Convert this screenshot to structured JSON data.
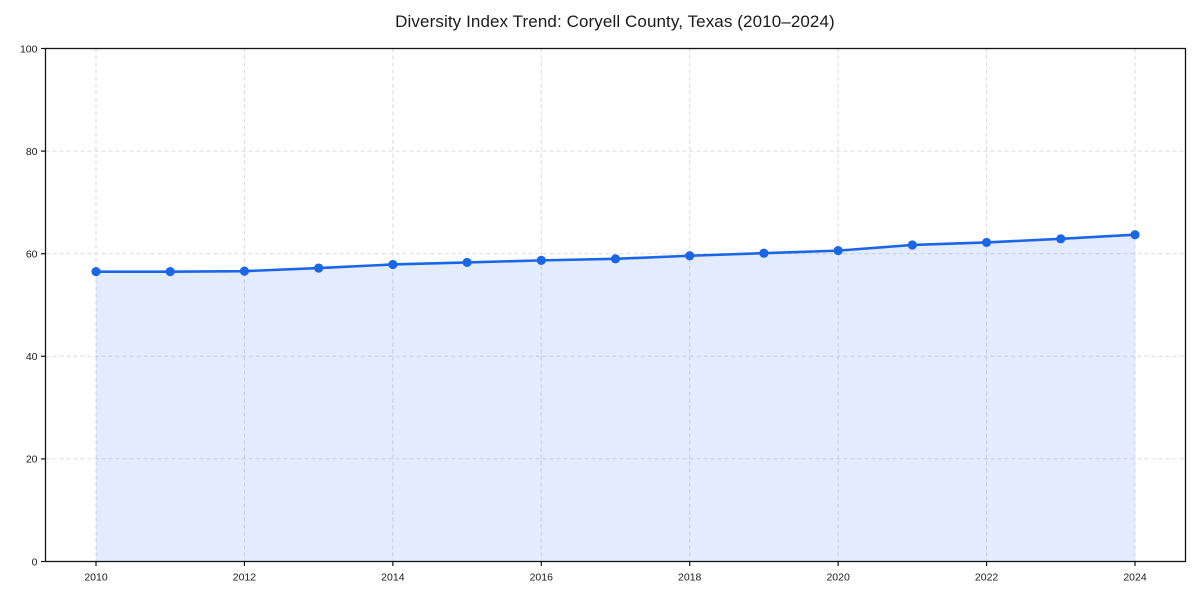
{
  "chart_data": {
    "type": "line",
    "title": "Diversity Index Trend: Coryell County, Texas (2010–2024)",
    "x": [
      2010,
      2011,
      2012,
      2013,
      2014,
      2015,
      2016,
      2017,
      2018,
      2019,
      2020,
      2021,
      2022,
      2023,
      2024
    ],
    "series": [
      {
        "name": "Diversity Index",
        "values": [
          56.5,
          56.5,
          56.6,
          57.2,
          57.9,
          58.3,
          58.7,
          59.0,
          59.6,
          60.1,
          60.6,
          61.7,
          62.2,
          62.9,
          63.7
        ]
      }
    ],
    "xlabel": "",
    "ylabel": "",
    "ylim": [
      0,
      100
    ],
    "yticks": [
      0,
      20,
      40,
      60,
      80,
      100
    ],
    "xticks": [
      2010,
      2012,
      2014,
      2016,
      2018,
      2020,
      2022,
      2024
    ],
    "grid": true,
    "grid_style": "dashed",
    "legend": "none",
    "area_fill": true,
    "colors": {
      "line": "#1b66e6",
      "marker": "#1b66e6",
      "fill": "rgba(27, 102, 230, 0.12)",
      "grid": "#dadada",
      "spine": "#141414",
      "tick_text": "#1a1a1a",
      "background": "#ffffff"
    }
  }
}
